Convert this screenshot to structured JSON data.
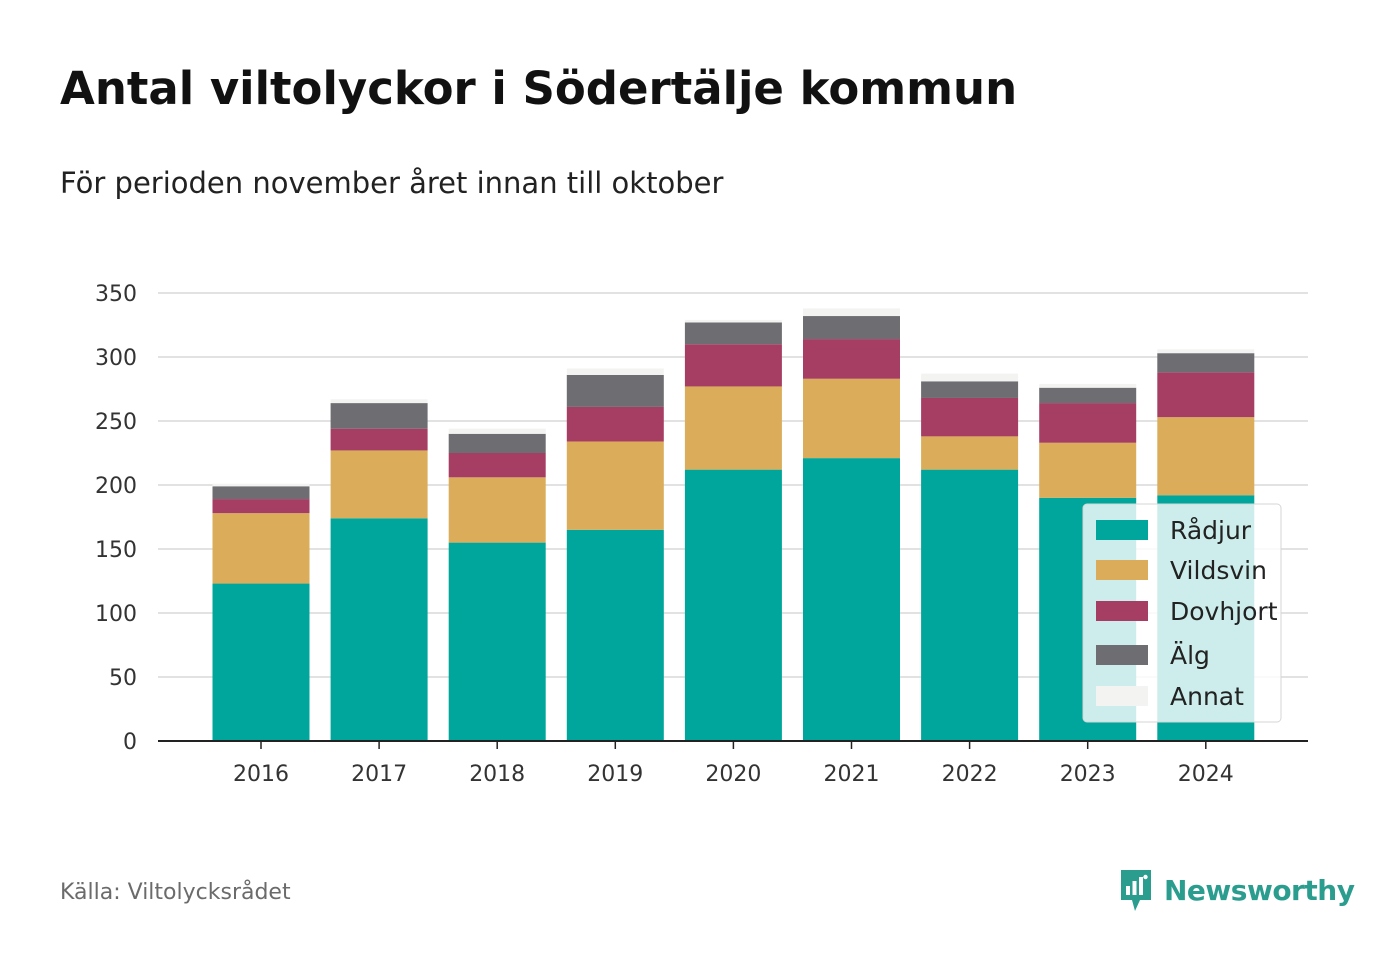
{
  "title": "Antal viltolyckor i Södertälje kommun",
  "subtitle": "För perioden november året innan till oktober",
  "source": "Källa: Viltolycksrådet",
  "brand": {
    "name": "Newsworthy",
    "icon": "newsworthy-logo-icon",
    "color": "#2a9d8f"
  },
  "chart_data": {
    "type": "bar",
    "stacked": true,
    "categories": [
      "2016",
      "2017",
      "2018",
      "2019",
      "2020",
      "2021",
      "2022",
      "2023",
      "2024"
    ],
    "series": [
      {
        "name": "Rådjur",
        "color": "#00a59b",
        "values": [
          123,
          174,
          155,
          165,
          212,
          221,
          212,
          190,
          192
        ]
      },
      {
        "name": "Vildsvin",
        "color": "#dbac59",
        "values": [
          55,
          53,
          51,
          69,
          65,
          62,
          26,
          43,
          61
        ]
      },
      {
        "name": "Dovhjort",
        "color": "#a63e64",
        "values": [
          11,
          17,
          19,
          27,
          33,
          31,
          30,
          31,
          35
        ]
      },
      {
        "name": "Älg",
        "color": "#6e6d72",
        "values": [
          10,
          20,
          15,
          25,
          17,
          18,
          13,
          12,
          15
        ]
      },
      {
        "name": "Annat",
        "color": "#f3f3f1",
        "values": [
          2,
          3,
          4,
          5,
          2,
          6,
          6,
          3,
          3
        ]
      }
    ],
    "ylim": [
      0,
      350
    ],
    "yticks": [
      0,
      50,
      100,
      150,
      200,
      250,
      300,
      350
    ],
    "xlabel": "",
    "ylabel": "",
    "grid": true,
    "legend": "bottom-right"
  }
}
